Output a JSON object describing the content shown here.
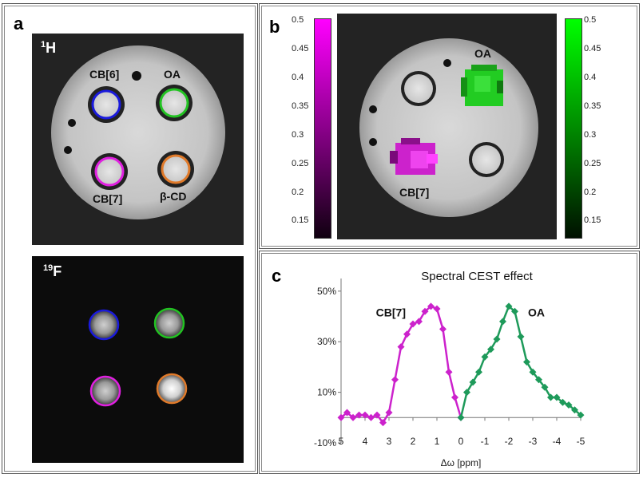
{
  "panel_a": {
    "label": "a",
    "top_image": {
      "nucleus_mass": "1",
      "nucleus_symbol": "H",
      "tube_labels": [
        "CB[6]",
        "OA",
        "CB[7]",
        "β-CD"
      ],
      "ring_colors": {
        "cb6": "#1a1adc",
        "oa": "#22c322",
        "cb7": "#e020e0",
        "bcd": "#e07a2a"
      }
    },
    "bottom_image": {
      "nucleus_mass": "19",
      "nucleus_symbol": "F"
    }
  },
  "panel_b": {
    "label": "b",
    "left_colorbar": {
      "color": "#ff00ff",
      "ticks": [
        "0.5",
        "0.45",
        "0.4",
        "0.35",
        "0.3",
        "0.25",
        "0.2",
        "0.15"
      ]
    },
    "right_colorbar": {
      "color": "#00ff00",
      "ticks": [
        "0.5",
        "0.45",
        "0.4",
        "0.35",
        "0.3",
        "0.25",
        "0.2",
        "0.15"
      ]
    },
    "tube_labels": {
      "oa": "OA",
      "cb7": "CB[7]"
    }
  },
  "panel_c": {
    "label": "c"
  },
  "chart_data": {
    "type": "line",
    "title": "Spectral CEST effect",
    "xlabel": "Δω [ppm]",
    "ylabel": "",
    "xlim": [
      5,
      -5
    ],
    "ylim": [
      -10,
      55
    ],
    "x_ticks": [
      "5",
      "4",
      "3",
      "2",
      "1",
      "0",
      "-1",
      "-2",
      "-3",
      "-4",
      "-5"
    ],
    "y_ticks": [
      "50%",
      "30%",
      "10%",
      "-10%"
    ],
    "y_tick_values": [
      50,
      30,
      10,
      -10
    ],
    "annotations": [
      "CB[7]",
      "OA"
    ],
    "series": [
      {
        "name": "CB[7]",
        "color": "#cc22cc",
        "x": [
          5,
          4.75,
          4.5,
          4.25,
          4,
          3.75,
          3.5,
          3.25,
          3,
          2.75,
          2.5,
          2.25,
          2,
          1.75,
          1.5,
          1.25,
          1,
          0.75,
          0.5,
          0.25,
          0
        ],
        "y": [
          0,
          2,
          0,
          1,
          1,
          0,
          1,
          -2,
          2,
          15,
          28,
          33,
          37,
          38,
          42,
          44,
          43,
          35,
          18,
          8,
          0
        ]
      },
      {
        "name": "OA",
        "color": "#1e9a5a",
        "x": [
          0,
          -0.25,
          -0.5,
          -0.75,
          -1,
          -1.25,
          -1.5,
          -1.75,
          -2,
          -2.25,
          -2.5,
          -2.75,
          -3,
          -3.25,
          -3.5,
          -3.75,
          -4,
          -4.25,
          -4.5,
          -4.75,
          -5
        ],
        "y": [
          0,
          10,
          14,
          18,
          24,
          27,
          31,
          38,
          44,
          42,
          32,
          22,
          18,
          15,
          12,
          8,
          8,
          6,
          5,
          3,
          1
        ]
      }
    ]
  }
}
